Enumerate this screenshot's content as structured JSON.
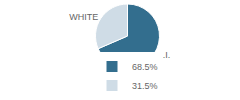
{
  "chart_data": {
    "type": "pie",
    "categories": [
      "68.5%",
      "31.5%"
    ],
    "values": [
      68.5,
      31.5
    ],
    "colors": [
      "#336e8e",
      "#cfdce6"
    ],
    "annotations": [
      "A.I.",
      "WHITE"
    ],
    "legend": "bottom"
  }
}
